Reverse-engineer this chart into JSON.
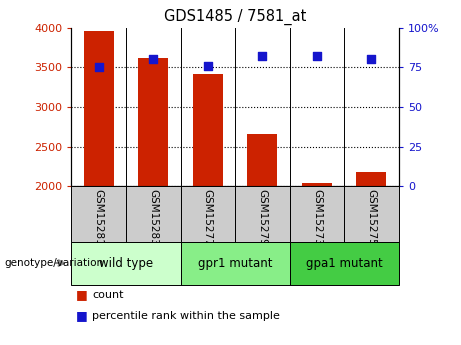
{
  "title": "GDS1485 / 7581_at",
  "samples": [
    "GSM15281",
    "GSM15283",
    "GSM15277",
    "GSM15279",
    "GSM15273",
    "GSM15275"
  ],
  "counts": [
    3960,
    3620,
    3420,
    2660,
    2040,
    2180
  ],
  "percentile_ranks": [
    75,
    80,
    76,
    82,
    82,
    80
  ],
  "ylim_left": [
    2000,
    4000
  ],
  "ylim_right": [
    0,
    100
  ],
  "yticks_left": [
    2000,
    2500,
    3000,
    3500,
    4000
  ],
  "yticks_right": [
    0,
    25,
    50,
    75,
    100
  ],
  "yticklabels_right": [
    "0",
    "25",
    "50",
    "75",
    "100%"
  ],
  "bar_color": "#cc2200",
  "dot_color": "#1515cc",
  "groups": [
    {
      "label": "wild type",
      "indices": [
        0,
        1
      ],
      "color": "#ccffcc"
    },
    {
      "label": "gpr1 mutant",
      "indices": [
        2,
        3
      ],
      "color": "#88ee88"
    },
    {
      "label": "gpa1 mutant",
      "indices": [
        4,
        5
      ],
      "color": "#44cc44"
    }
  ],
  "group_label": "genotype/variation",
  "legend_count_label": "count",
  "legend_percentile_label": "percentile rank within the sample",
  "bar_width": 0.55,
  "axis_color_left": "#cc2200",
  "axis_color_right": "#1515cc",
  "sample_box_color": "#cccccc",
  "figure_width": 4.61,
  "figure_height": 3.45,
  "dpi": 100
}
